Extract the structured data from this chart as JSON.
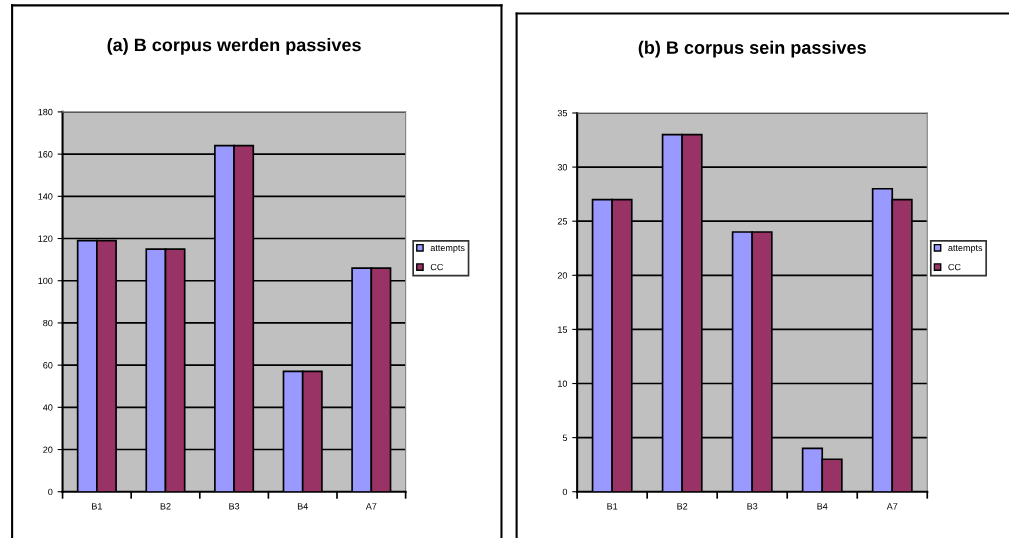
{
  "chart_data": [
    {
      "type": "bar",
      "title": "(a) B corpus werden passives",
      "categories": [
        "B1",
        "B2",
        "B3",
        "B4",
        "A7"
      ],
      "series": [
        {
          "name": "attempts",
          "color": "#9999ff",
          "values": [
            119,
            115,
            164,
            57,
            106
          ]
        },
        {
          "name": "CC",
          "color": "#993366",
          "values": [
            119,
            115,
            164,
            57,
            106
          ]
        }
      ],
      "ylim": [
        0,
        180
      ],
      "yticks": [
        0,
        20,
        40,
        60,
        80,
        100,
        120,
        140,
        160,
        180
      ],
      "grid": "y",
      "legend": "right"
    },
    {
      "type": "bar",
      "title": "(b) B corpus sein passives",
      "categories": [
        "B1",
        "B2",
        "B3",
        "B4",
        "A7"
      ],
      "series": [
        {
          "name": "attempts",
          "color": "#9999ff",
          "values": [
            27,
            33,
            24,
            4,
            28
          ]
        },
        {
          "name": "CC",
          "color": "#993366",
          "values": [
            27,
            33,
            24,
            3,
            27
          ]
        }
      ],
      "ylim": [
        0,
        35
      ],
      "yticks": [
        0,
        5,
        10,
        15,
        20,
        25,
        30,
        35
      ],
      "grid": "y",
      "legend": "right"
    }
  ]
}
